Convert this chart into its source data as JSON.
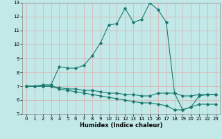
{
  "xlabel": "Humidex (Indice chaleur)",
  "xlim": [
    -0.5,
    23.5
  ],
  "ylim": [
    5,
    13
  ],
  "yticks": [
    5,
    6,
    7,
    8,
    9,
    10,
    11,
    12,
    13
  ],
  "xticks": [
    0,
    1,
    2,
    3,
    4,
    5,
    6,
    7,
    8,
    9,
    10,
    11,
    12,
    13,
    14,
    15,
    16,
    17,
    18,
    19,
    20,
    21,
    22,
    23
  ],
  "background_color": "#c2e8e8",
  "grid_color": "#d8b8b8",
  "line_color": "#1a7a6e",
  "line1_x": [
    0,
    1,
    2,
    3,
    4,
    5,
    6,
    7,
    8,
    9,
    10,
    11,
    12,
    13,
    14,
    15,
    16,
    17,
    18,
    19,
    20,
    21,
    22,
    23
  ],
  "line1_y": [
    7.0,
    7.0,
    7.1,
    7.1,
    8.4,
    8.3,
    8.3,
    8.5,
    9.2,
    10.1,
    11.4,
    11.5,
    12.6,
    11.6,
    11.8,
    13.0,
    12.5,
    11.6,
    6.5,
    5.3,
    5.5,
    6.3,
    6.4,
    6.4
  ],
  "line2_x": [
    0,
    1,
    2,
    3,
    4,
    5,
    6,
    7,
    8,
    9,
    10,
    11,
    12,
    13,
    14,
    15,
    16,
    17,
    18,
    19,
    20,
    21,
    22,
    23
  ],
  "line2_y": [
    7.0,
    7.0,
    7.0,
    7.0,
    6.9,
    6.8,
    6.8,
    6.7,
    6.7,
    6.6,
    6.5,
    6.5,
    6.4,
    6.4,
    6.3,
    6.3,
    6.5,
    6.5,
    6.5,
    6.3,
    6.3,
    6.4,
    6.4,
    6.4
  ],
  "line3_x": [
    0,
    1,
    2,
    3,
    4,
    5,
    6,
    7,
    8,
    9,
    10,
    11,
    12,
    13,
    14,
    15,
    16,
    17,
    18,
    19,
    20,
    21,
    22,
    23
  ],
  "line3_y": [
    7.0,
    7.0,
    7.0,
    7.0,
    6.8,
    6.7,
    6.6,
    6.5,
    6.4,
    6.3,
    6.2,
    6.1,
    6.0,
    5.9,
    5.8,
    5.8,
    5.7,
    5.6,
    5.3,
    5.3,
    5.5,
    5.7,
    5.7,
    5.7
  ]
}
